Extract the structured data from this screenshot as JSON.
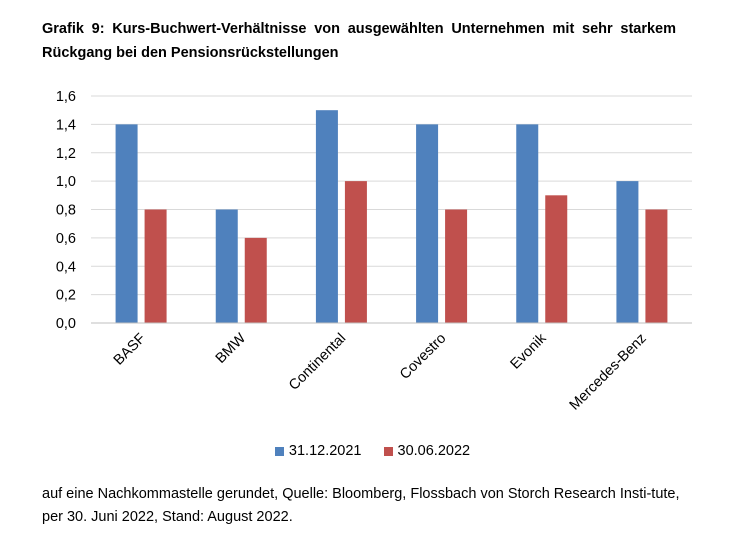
{
  "title": "Grafik 9: Kurs-Buchwert-Verhältnisse von ausgewählten Unternehmen mit sehr starkem Rückgang bei den Pensionsrückstellungen",
  "footnote": "auf eine Nachkommastelle gerundet, Quelle: Bloomberg, Flossbach von Storch Research Insti-tute, per 30. Juni 2022, Stand: August 2022.",
  "colors": {
    "series_1": "#4f81bd",
    "series_2": "#c0504d",
    "gridline": "#d9d9d9",
    "axis": "#bfbfbf"
  },
  "chart_data": {
    "type": "bar",
    "title": "Grafik 9: Kurs-Buchwert-Verhältnisse von ausgewählten Unternehmen mit sehr starkem Rückgang bei den Pensionsrückstellungen",
    "xlabel": "",
    "ylabel": "",
    "categories": [
      "BASF",
      "BMW",
      "Continental",
      "Covestro",
      "Evonik",
      "Mercedes-Benz"
    ],
    "series": [
      {
        "name": "31.12.2021",
        "values": [
          1.4,
          0.8,
          1.5,
          1.4,
          1.4,
          1.0
        ]
      },
      {
        "name": "30.06.2022",
        "values": [
          0.8,
          0.6,
          1.0,
          0.8,
          0.9,
          0.8
        ]
      }
    ],
    "ylim": [
      0,
      1.6
    ],
    "yticks": [
      "0,0",
      "0,2",
      "0,4",
      "0,6",
      "0,8",
      "1,0",
      "1,2",
      "1,4",
      "1,6"
    ],
    "grid": true,
    "legend_position": "bottom"
  }
}
